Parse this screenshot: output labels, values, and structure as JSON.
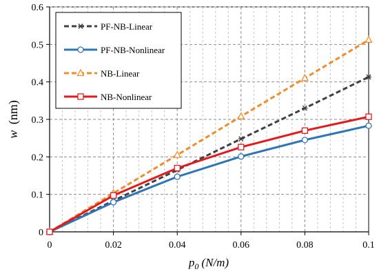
{
  "chart_data": {
    "type": "line",
    "xlabel_main": "p",
    "xlabel_sub": "0",
    "xlabel_unit": "(N/m)",
    "ylabel_main": "w",
    "ylabel_unit": "(nm)",
    "xlim": [
      0,
      0.1
    ],
    "ylim": [
      0,
      0.6
    ],
    "x_ticks": [
      0,
      0.02,
      0.04,
      0.06,
      0.08,
      0.1
    ],
    "x_tick_labels": [
      "0",
      "0.02",
      "0.04",
      "0.06",
      "0.08",
      "0.1"
    ],
    "y_ticks": [
      0,
      0.1,
      0.2,
      0.3,
      0.4,
      0.5,
      0.6
    ],
    "y_tick_labels": [
      "0",
      "0.1",
      "0.2",
      "0.3",
      "0.4",
      "0.5",
      "0.6"
    ],
    "grid": true,
    "legend_position": "top-left",
    "series": [
      {
        "name": "PF-NB-Linear",
        "color": "#404040",
        "dash": "dashed",
        "marker": "asterisk",
        "x": [
          0,
          0.02,
          0.04,
          0.06,
          0.08,
          0.1
        ],
        "y": [
          0,
          0.083,
          0.165,
          0.248,
          0.33,
          0.413
        ]
      },
      {
        "name": "PF-NB-Nonlinear",
        "color": "#2e75b6",
        "dash": "solid",
        "marker": "circle",
        "x": [
          0,
          0.02,
          0.04,
          0.06,
          0.08,
          0.1
        ],
        "y": [
          0,
          0.079,
          0.147,
          0.201,
          0.245,
          0.283
        ]
      },
      {
        "name": "NB-Linear",
        "color": "#f28c28",
        "dash": "dashed",
        "marker": "triangle",
        "x": [
          0,
          0.02,
          0.04,
          0.06,
          0.08,
          0.1
        ],
        "y": [
          0,
          0.103,
          0.205,
          0.308,
          0.41,
          0.512
        ]
      },
      {
        "name": "NB-Nonlinear",
        "color": "#e31a1c",
        "dash": "solid",
        "marker": "square",
        "x": [
          0,
          0.02,
          0.04,
          0.06,
          0.08,
          0.1
        ],
        "y": [
          0,
          0.097,
          0.17,
          0.226,
          0.27,
          0.307
        ]
      }
    ]
  }
}
